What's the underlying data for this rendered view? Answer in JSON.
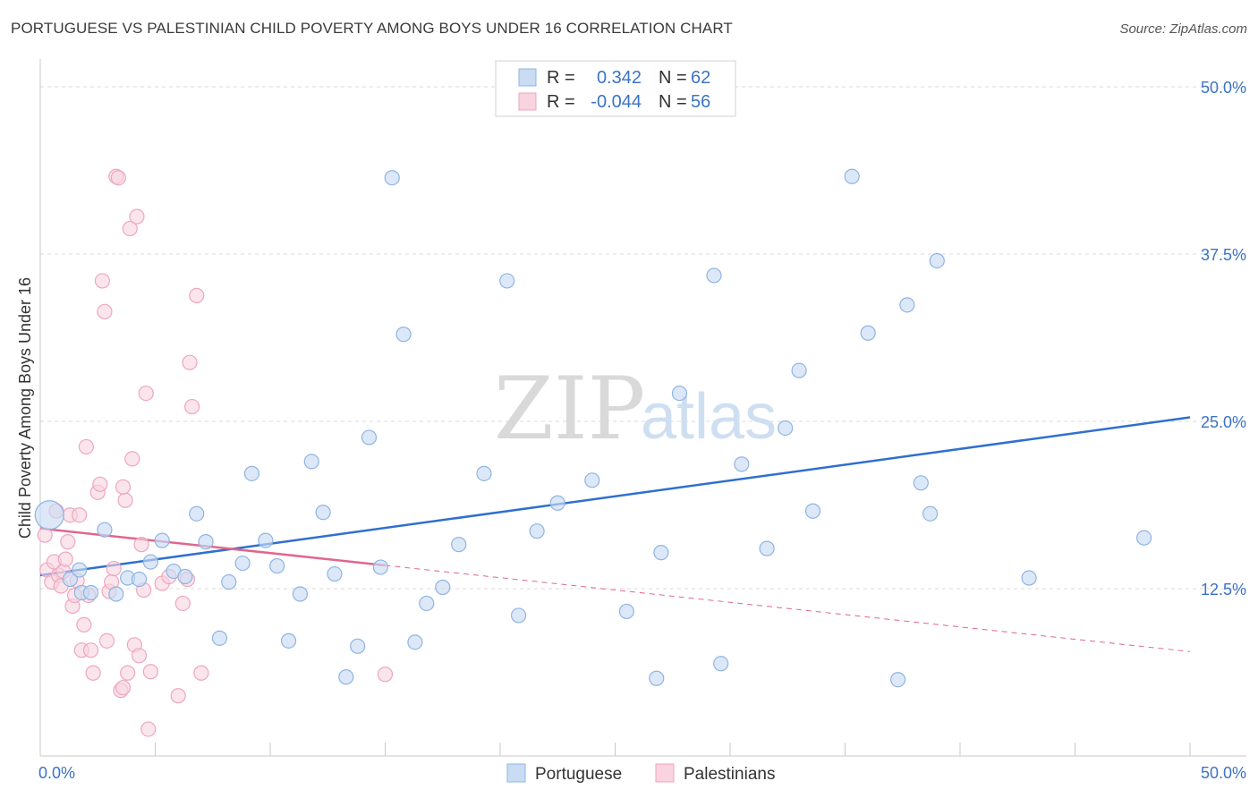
{
  "header": {
    "title": "PORTUGUESE VS PALESTINIAN CHILD POVERTY AMONG BOYS UNDER 16 CORRELATION CHART",
    "source": "Source: ZipAtlas.com"
  },
  "watermark": {
    "zip": "ZIP",
    "atlas": "atlas"
  },
  "legend_box": {
    "rows": [
      {
        "r_label": "R =",
        "r_value": "0.342",
        "n_label": "N =",
        "n_value": "62",
        "color": "#aecbee"
      },
      {
        "r_label": "R =",
        "r_value": "-0.044",
        "n_label": "N =",
        "n_value": "56",
        "color": "#f6bccf"
      }
    ]
  },
  "colors": {
    "blue_fill": "#c9dcf3",
    "blue_stroke": "#8fb4e3",
    "blue_line": "#2f6fcf",
    "pink_fill": "#f9d3df",
    "pink_stroke": "#eea6bd",
    "pink_line": "#e0668f",
    "grid": "#d9d9d9",
    "tick_text": "#3b73c4"
  },
  "chart_data": {
    "type": "scatter",
    "title": "PORTUGUESE VS PALESTINIAN CHILD POVERTY AMONG BOYS UNDER 16 CORRELATION CHART",
    "xlabel": "",
    "ylabel": "Child Poverty Among Boys Under 16",
    "xlim": [
      0,
      50
    ],
    "ylim": [
      0,
      50
    ],
    "x_tick_labels": [
      "0.0%",
      "50.0%"
    ],
    "y_ticks": [
      12.5,
      25.0,
      37.5,
      50.0
    ],
    "y_tick_labels": [
      "12.5%",
      "25.0%",
      "37.5%",
      "50.0%"
    ],
    "grid": true,
    "legend": [
      "Portuguese",
      "Palestinians"
    ],
    "series": [
      {
        "name": "Portuguese",
        "r": 0.342,
        "n": 62,
        "trend": {
          "x0": 0,
          "y0": 13.5,
          "x1": 50,
          "y1": 25.3,
          "dashed_from": null
        },
        "points": [
          [
            0.4,
            18.0
          ],
          [
            1.3,
            13.2
          ],
          [
            1.7,
            13.9
          ],
          [
            1.8,
            12.2
          ],
          [
            2.2,
            12.2
          ],
          [
            2.8,
            16.9
          ],
          [
            3.3,
            12.1
          ],
          [
            3.8,
            13.3
          ],
          [
            4.3,
            13.2
          ],
          [
            4.8,
            14.5
          ],
          [
            5.3,
            16.1
          ],
          [
            5.8,
            13.8
          ],
          [
            6.3,
            13.4
          ],
          [
            6.8,
            18.1
          ],
          [
            7.2,
            16.0
          ],
          [
            7.8,
            8.8
          ],
          [
            8.2,
            13.0
          ],
          [
            8.8,
            14.4
          ],
          [
            9.2,
            21.1
          ],
          [
            9.8,
            16.1
          ],
          [
            10.3,
            14.2
          ],
          [
            10.8,
            8.6
          ],
          [
            11.3,
            12.1
          ],
          [
            11.8,
            22.0
          ],
          [
            12.3,
            18.2
          ],
          [
            12.8,
            13.6
          ],
          [
            13.3,
            5.9
          ],
          [
            13.8,
            8.2
          ],
          [
            14.3,
            23.8
          ],
          [
            14.8,
            14.1
          ],
          [
            15.3,
            43.2
          ],
          [
            15.8,
            31.5
          ],
          [
            16.3,
            8.5
          ],
          [
            16.8,
            11.4
          ],
          [
            17.5,
            12.6
          ],
          [
            18.2,
            15.8
          ],
          [
            19.3,
            21.1
          ],
          [
            20.3,
            35.5
          ],
          [
            20.8,
            10.5
          ],
          [
            21.6,
            16.8
          ],
          [
            22.5,
            18.9
          ],
          [
            24.0,
            20.6
          ],
          [
            25.5,
            10.8
          ],
          [
            26.8,
            5.8
          ],
          [
            27.0,
            15.2
          ],
          [
            27.8,
            27.1
          ],
          [
            29.3,
            35.9
          ],
          [
            29.6,
            6.9
          ],
          [
            30.5,
            21.8
          ],
          [
            31.6,
            15.5
          ],
          [
            32.4,
            24.5
          ],
          [
            33.0,
            28.8
          ],
          [
            33.6,
            18.3
          ],
          [
            35.3,
            43.3
          ],
          [
            36.0,
            31.6
          ],
          [
            37.3,
            5.7
          ],
          [
            37.7,
            33.7
          ],
          [
            38.3,
            20.4
          ],
          [
            38.7,
            18.1
          ],
          [
            39.0,
            37.0
          ],
          [
            43.0,
            13.3
          ],
          [
            48.0,
            16.3
          ]
        ]
      },
      {
        "name": "Palestinians",
        "r": -0.044,
        "n": 56,
        "trend": {
          "x0": 0,
          "y0": 17.0,
          "x1": 50,
          "y1": 7.8,
          "dashed_from": 15.0
        },
        "points": [
          [
            0.2,
            16.5
          ],
          [
            0.3,
            13.9
          ],
          [
            0.5,
            13.0
          ],
          [
            0.6,
            14.5
          ],
          [
            0.7,
            18.3
          ],
          [
            0.8,
            13.5
          ],
          [
            0.9,
            12.7
          ],
          [
            1.0,
            13.8
          ],
          [
            1.1,
            14.7
          ],
          [
            1.2,
            16.0
          ],
          [
            1.3,
            18.0
          ],
          [
            1.4,
            11.2
          ],
          [
            1.5,
            12.0
          ],
          [
            1.6,
            13.1
          ],
          [
            1.7,
            18.0
          ],
          [
            1.8,
            7.9
          ],
          [
            1.9,
            9.8
          ],
          [
            2.0,
            23.1
          ],
          [
            2.1,
            12.0
          ],
          [
            2.2,
            7.9
          ],
          [
            2.3,
            6.2
          ],
          [
            2.5,
            19.7
          ],
          [
            2.6,
            20.3
          ],
          [
            2.7,
            35.5
          ],
          [
            2.8,
            33.2
          ],
          [
            2.9,
            8.6
          ],
          [
            3.0,
            12.3
          ],
          [
            3.1,
            13.0
          ],
          [
            3.2,
            14.0
          ],
          [
            3.3,
            43.3
          ],
          [
            3.4,
            43.2
          ],
          [
            3.5,
            4.9
          ],
          [
            3.6,
            5.1
          ],
          [
            3.7,
            19.1
          ],
          [
            3.8,
            6.2
          ],
          [
            3.9,
            39.4
          ],
          [
            4.0,
            22.2
          ],
          [
            4.1,
            8.3
          ],
          [
            4.2,
            40.3
          ],
          [
            4.3,
            7.5
          ],
          [
            4.4,
            15.8
          ],
          [
            4.5,
            12.4
          ],
          [
            4.6,
            27.1
          ],
          [
            4.7,
            2.0
          ],
          [
            4.8,
            6.3
          ],
          [
            5.3,
            12.9
          ],
          [
            5.6,
            13.4
          ],
          [
            6.0,
            4.5
          ],
          [
            6.2,
            11.4
          ],
          [
            6.4,
            13.2
          ],
          [
            6.5,
            29.4
          ],
          [
            6.6,
            26.1
          ],
          [
            6.8,
            34.4
          ],
          [
            7.0,
            6.2
          ],
          [
            15.0,
            6.1
          ],
          [
            3.6,
            20.1
          ]
        ]
      }
    ]
  }
}
